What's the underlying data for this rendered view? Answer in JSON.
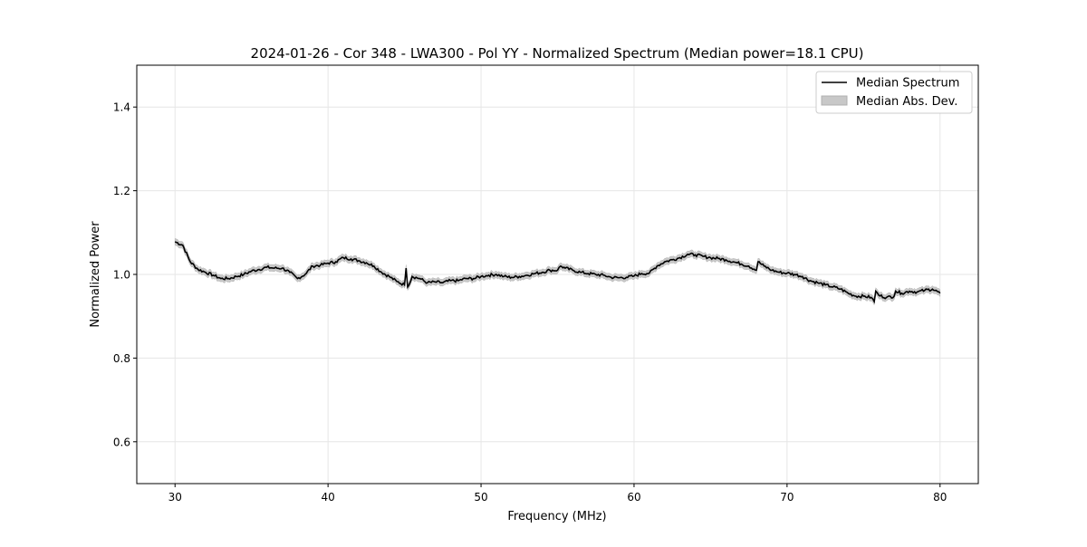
{
  "chart_data": {
    "type": "line",
    "title": "2024-01-26 - Cor 348 - LWA300 - Pol YY - Normalized Spectrum (Median power=18.1 CPU)",
    "xlabel": "Frequency (MHz)",
    "ylabel": "Normalized Power",
    "xlim": [
      27.5,
      82.5
    ],
    "ylim": [
      0.5,
      1.5
    ],
    "xticks": [
      30,
      40,
      50,
      60,
      70,
      80
    ],
    "xtick_labels": [
      "30",
      "40",
      "50",
      "60",
      "70",
      "80"
    ],
    "yticks": [
      0.6,
      0.8,
      1.0,
      1.2,
      1.4
    ],
    "ytick_labels": [
      "0.6",
      "0.8",
      "1.0",
      "1.2",
      "1.4"
    ],
    "grid": true,
    "legend": {
      "placement": "top-right",
      "entries": [
        "Median Spectrum",
        "Median Abs. Dev."
      ]
    },
    "colors": {
      "line": "#000000",
      "band": "#c8c8c8",
      "grid": "#e6e6e6"
    },
    "mad": 0.008,
    "series": [
      {
        "name": "Median Spectrum",
        "x": [
          30,
          30.5,
          31,
          31.5,
          32,
          32.5,
          33,
          33.5,
          34,
          34.5,
          35,
          35.5,
          36,
          36.5,
          37,
          37.5,
          38,
          38.5,
          39,
          39.5,
          40,
          40.5,
          41,
          41.5,
          42,
          42.5,
          43,
          43.5,
          44,
          44.5,
          45,
          45.1,
          45.2,
          45.5,
          46,
          46.5,
          47,
          47.5,
          48,
          48.5,
          49,
          49.5,
          50,
          50.5,
          51,
          51.5,
          52,
          52.5,
          53,
          53.5,
          54,
          54.5,
          55,
          55.2,
          55.5,
          56,
          56.5,
          57,
          57.5,
          58,
          58.5,
          59,
          59.5,
          60,
          60.5,
          61,
          61.5,
          62,
          62.5,
          63,
          63.5,
          64,
          64.5,
          65,
          65.5,
          66,
          66.5,
          67,
          67.5,
          68,
          68.1,
          68.5,
          69,
          69.5,
          70,
          70.5,
          71,
          71.5,
          72,
          72.5,
          73,
          73.5,
          74,
          74.5,
          75,
          75.5,
          75.7,
          75.8,
          76,
          76.5,
          77,
          77.1,
          77.5,
          78,
          78.5,
          79,
          79.5,
          80
        ],
        "y": [
          1.078,
          1.07,
          1.03,
          1.012,
          1.005,
          0.998,
          0.99,
          0.99,
          0.995,
          1.0,
          1.008,
          1.012,
          1.017,
          1.015,
          1.015,
          1.005,
          0.99,
          1.0,
          1.02,
          1.022,
          1.027,
          1.03,
          1.04,
          1.037,
          1.033,
          1.028,
          1.02,
          1.005,
          0.995,
          0.983,
          0.975,
          1.015,
          0.97,
          0.995,
          0.99,
          0.98,
          0.982,
          0.98,
          0.985,
          0.985,
          0.99,
          0.99,
          0.995,
          0.998,
          1.0,
          0.995,
          0.993,
          0.995,
          0.998,
          1.002,
          1.005,
          1.01,
          1.01,
          1.02,
          1.015,
          1.01,
          1.005,
          1.002,
          1.0,
          0.998,
          0.993,
          0.992,
          0.993,
          0.996,
          1.002,
          1.003,
          1.02,
          1.03,
          1.035,
          1.04,
          1.048,
          1.047,
          1.043,
          1.04,
          1.038,
          1.035,
          1.03,
          1.025,
          1.02,
          1.01,
          1.03,
          1.02,
          1.01,
          1.005,
          1.003,
          1.0,
          0.995,
          0.985,
          0.98,
          0.975,
          0.97,
          0.965,
          0.955,
          0.948,
          0.948,
          0.945,
          0.935,
          0.96,
          0.95,
          0.945,
          0.948,
          0.96,
          0.955,
          0.96,
          0.958,
          0.962,
          0.965,
          0.955
        ]
      }
    ]
  }
}
